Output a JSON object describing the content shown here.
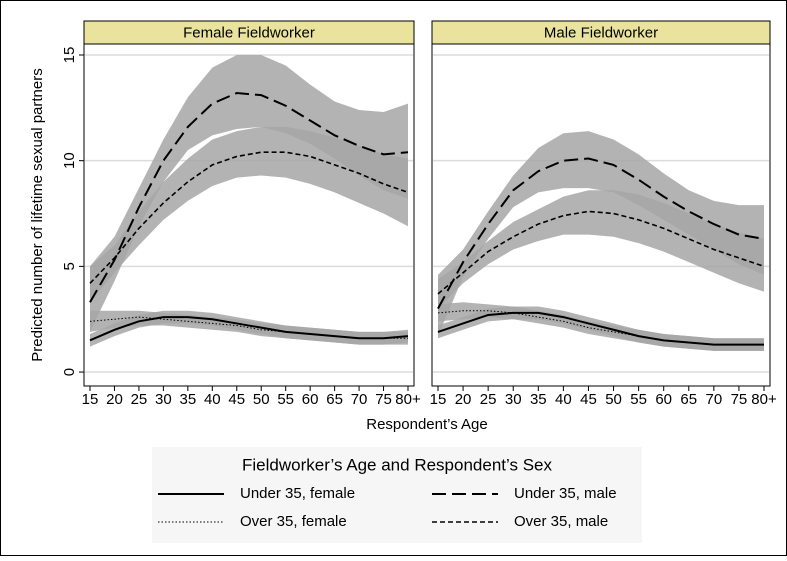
{
  "figure": {
    "ylabel": "Predicted number of lifetime sexual partners",
    "xlabel": "Respondent’s Age",
    "legend_title": "Fieldworker’s Age and Respondent’s Sex"
  },
  "chart_data": [
    {
      "type": "line",
      "title": "Female Fieldworker",
      "categories": [
        "15",
        "20",
        "25",
        "30",
        "35",
        "40",
        "45",
        "50",
        "55",
        "60",
        "65",
        "70",
        "75",
        "80+"
      ],
      "ylim": [
        -0.66,
        15.52
      ],
      "yticks": [
        0,
        5,
        10,
        15
      ],
      "grid": true,
      "band_color": "#a6a6a6",
      "series": [
        {
          "name": "Under 35, female",
          "color": "#000000",
          "dash": "solid",
          "values": [
            1.5,
            2.0,
            2.4,
            2.6,
            2.6,
            2.5,
            2.3,
            2.1,
            1.9,
            1.8,
            1.7,
            1.6,
            1.6,
            1.7
          ],
          "lower": [
            1.2,
            1.7,
            2.1,
            2.3,
            2.3,
            2.2,
            2.0,
            1.8,
            1.6,
            1.5,
            1.4,
            1.3,
            1.3,
            1.4
          ],
          "upper": [
            1.8,
            2.3,
            2.7,
            2.9,
            2.9,
            2.8,
            2.6,
            2.4,
            2.2,
            2.1,
            2.0,
            1.9,
            1.9,
            2.0
          ]
        },
        {
          "name": "Under 35, male",
          "color": "#000000",
          "dash": "longdash",
          "values": [
            3.3,
            5.3,
            7.8,
            10.0,
            11.6,
            12.7,
            13.2,
            13.1,
            12.6,
            11.9,
            11.2,
            10.7,
            10.3,
            10.4
          ],
          "lower": [
            1.9,
            4.3,
            6.9,
            9.0,
            10.5,
            11.2,
            11.5,
            11.6,
            11.3,
            10.8,
            10.1,
            9.3,
            8.6,
            8.2
          ],
          "upper": [
            5.0,
            6.4,
            8.7,
            11.0,
            13.0,
            14.4,
            15.0,
            15.0,
            14.5,
            13.6,
            12.8,
            12.4,
            12.3,
            12.7
          ]
        },
        {
          "name": "Over 35, female",
          "color": "#000000",
          "dash": "dot",
          "values": [
            2.4,
            2.5,
            2.6,
            2.5,
            2.4,
            2.3,
            2.2,
            2.0,
            1.9,
            1.8,
            1.7,
            1.6,
            1.6,
            1.6
          ],
          "lower": [
            1.9,
            2.1,
            2.2,
            2.2,
            2.1,
            2.0,
            1.9,
            1.7,
            1.6,
            1.5,
            1.4,
            1.3,
            1.3,
            1.3
          ],
          "upper": [
            2.9,
            2.9,
            2.9,
            2.8,
            2.7,
            2.6,
            2.5,
            2.3,
            2.2,
            2.1,
            2.0,
            1.9,
            1.9,
            1.9
          ]
        },
        {
          "name": "Over 35, male",
          "color": "#000000",
          "dash": "shortdash",
          "values": [
            4.2,
            5.4,
            6.8,
            8.0,
            9.0,
            9.8,
            10.2,
            10.4,
            10.4,
            10.2,
            9.8,
            9.4,
            8.9,
            8.5
          ],
          "lower": [
            3.3,
            4.7,
            6.0,
            7.2,
            8.1,
            8.8,
            9.2,
            9.3,
            9.2,
            8.9,
            8.5,
            8.0,
            7.5,
            6.9
          ],
          "upper": [
            5.0,
            6.0,
            7.6,
            9.0,
            10.1,
            11.0,
            11.4,
            11.6,
            11.6,
            11.4,
            11.1,
            10.7,
            10.3,
            10.1
          ]
        }
      ]
    },
    {
      "type": "line",
      "title": "Male Fieldworker",
      "categories": [
        "15",
        "20",
        "25",
        "30",
        "35",
        "40",
        "45",
        "50",
        "55",
        "60",
        "65",
        "70",
        "75",
        "80+"
      ],
      "ylim": [
        -0.66,
        15.52
      ],
      "yticks": [
        0,
        5,
        10,
        15
      ],
      "grid": true,
      "band_color": "#a6a6a6",
      "series": [
        {
          "color": "#000000",
          "dash": "solid",
          "values": [
            1.9,
            2.3,
            2.7,
            2.8,
            2.8,
            2.6,
            2.3,
            2.0,
            1.7,
            1.5,
            1.4,
            1.3,
            1.3,
            1.3
          ],
          "lower": [
            1.6,
            2.0,
            2.4,
            2.5,
            2.5,
            2.3,
            2.0,
            1.7,
            1.4,
            1.2,
            1.1,
            1.0,
            1.0,
            1.0
          ],
          "upper": [
            2.2,
            2.6,
            3.0,
            3.1,
            3.1,
            2.9,
            2.6,
            2.3,
            2.0,
            1.8,
            1.7,
            1.6,
            1.6,
            1.6
          ]
        },
        {
          "color": "#000000",
          "dash": "longdash",
          "values": [
            3.0,
            5.2,
            7.0,
            8.6,
            9.5,
            10.0,
            10.1,
            9.8,
            9.1,
            8.3,
            7.6,
            7.0,
            6.5,
            6.3
          ],
          "lower": [
            1.7,
            4.5,
            6.3,
            7.8,
            8.5,
            8.7,
            8.7,
            8.5,
            7.9,
            7.2,
            6.5,
            5.8,
            5.1,
            4.6
          ],
          "upper": [
            4.6,
            5.8,
            7.6,
            9.3,
            10.6,
            11.3,
            11.4,
            11.0,
            10.3,
            9.4,
            8.6,
            8.1,
            7.9,
            7.9
          ]
        },
        {
          "color": "#000000",
          "dash": "dot",
          "values": [
            2.8,
            2.9,
            2.9,
            2.8,
            2.6,
            2.4,
            2.1,
            1.9,
            1.7,
            1.5,
            1.4,
            1.3,
            1.3,
            1.3
          ],
          "lower": [
            2.4,
            2.5,
            2.6,
            2.5,
            2.3,
            2.1,
            1.8,
            1.6,
            1.4,
            1.2,
            1.1,
            1.0,
            1.0,
            1.0
          ],
          "upper": [
            3.2,
            3.3,
            3.2,
            3.1,
            2.9,
            2.7,
            2.4,
            2.2,
            2.0,
            1.8,
            1.7,
            1.6,
            1.6,
            1.6
          ]
        },
        {
          "color": "#000000",
          "dash": "shortdash",
          "values": [
            3.7,
            4.7,
            5.7,
            6.4,
            7.0,
            7.4,
            7.6,
            7.5,
            7.2,
            6.8,
            6.3,
            5.8,
            5.4,
            5.0
          ],
          "lower": [
            3.0,
            4.2,
            5.1,
            5.8,
            6.2,
            6.5,
            6.5,
            6.4,
            6.1,
            5.7,
            5.2,
            4.7,
            4.2,
            3.8
          ],
          "upper": [
            4.4,
            5.2,
            6.2,
            7.1,
            7.7,
            8.3,
            8.6,
            8.6,
            8.4,
            8.0,
            7.5,
            7.0,
            6.6,
            6.3
          ]
        }
      ]
    }
  ]
}
